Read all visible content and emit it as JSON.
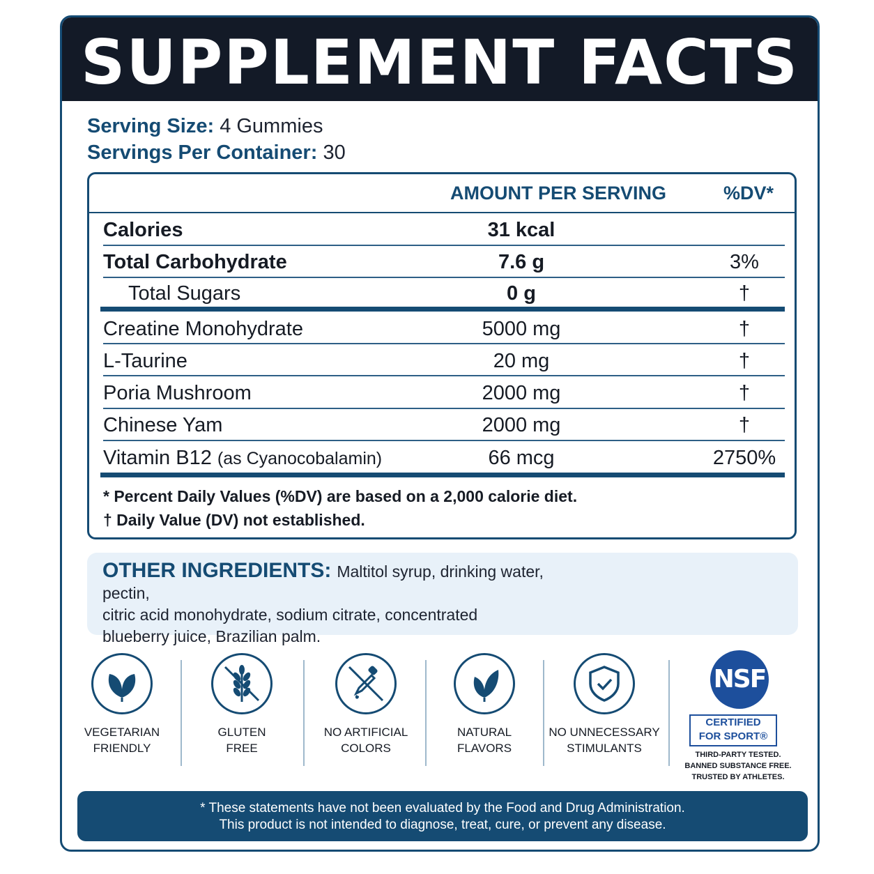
{
  "title": "SUPPLEMENT FACTS",
  "serving": {
    "size_label": "Serving Size:",
    "size_value": "4 Gummies",
    "per_container_label": "Servings Per Container:",
    "per_container_value": "30"
  },
  "table": {
    "headers": {
      "amount": "AMOUNT PER SERVING",
      "dv": "%DV*"
    },
    "rows": [
      {
        "name": "Calories",
        "amount": "31 kcal",
        "dv": ""
      },
      {
        "name": "Total Carbohydrate",
        "amount": "7.6 g",
        "dv": "3%"
      },
      {
        "name": "Total Sugars",
        "amount": "0 g",
        "dv": "†"
      },
      {
        "name": "Creatine Monohydrate",
        "amount": "5000 mg",
        "dv": "†"
      },
      {
        "name": "L-Taurine",
        "amount": "20 mg",
        "dv": "†"
      },
      {
        "name": "Poria Mushroom",
        "amount": "2000 mg",
        "dv": "†"
      },
      {
        "name": "Chinese Yam",
        "amount": "2000 mg",
        "dv": "†"
      },
      {
        "name": "Vitamin B12",
        "name_sub": "(as Cyanocobalamin)",
        "amount": "66 mcg",
        "dv": "2750%"
      }
    ],
    "footnotes": [
      "* Percent Daily Values (%DV) are based on a 2,000 calorie diet.",
      "† Daily Value (DV) not established."
    ]
  },
  "other_ingredients": {
    "title": "OTHER INGREDIENTS:",
    "line1": "Maltitol syrup, drinking water, pectin,",
    "line2": "citric acid monohydrate, sodium citrate, concentrated",
    "line3": "blueberry juice, Brazilian palm."
  },
  "badges": [
    {
      "icon": "leaf-icon",
      "line1": "VEGETARIAN",
      "line2": "FRIENDLY"
    },
    {
      "icon": "wheat-crossed-icon",
      "line1": "GLUTEN",
      "line2": "FREE"
    },
    {
      "icon": "dropper-crossed-icon",
      "line1": "NO ARTIFICIAL",
      "line2": "COLORS"
    },
    {
      "icon": "leaf-icon",
      "line1": "NATURAL",
      "line2": "FLAVORS"
    },
    {
      "icon": "shield-check-icon",
      "line1": "NO UNNECESSARY",
      "line2": "STIMULANTS"
    }
  ],
  "nsf": {
    "logo_text": "NSF",
    "certified_line1": "CERTIFIED",
    "certified_line2": "FOR SPORT®",
    "small1": "THIRD-PARTY TESTED.",
    "small2": "BANNED SUBSTANCE FREE.",
    "small3": "TRUSTED BY ATHLETES."
  },
  "disclaimer": {
    "line1": "* These statements have not been evaluated by the Food and Drug Administration.",
    "line2": "This product is not intended to diagnose, treat, cure, or prevent any disease."
  },
  "colors": {
    "navy": "#154b73",
    "title_bg": "#131a27",
    "panel_bg": "#e8f1f9",
    "nsf_blue": "#1d4f9c"
  }
}
